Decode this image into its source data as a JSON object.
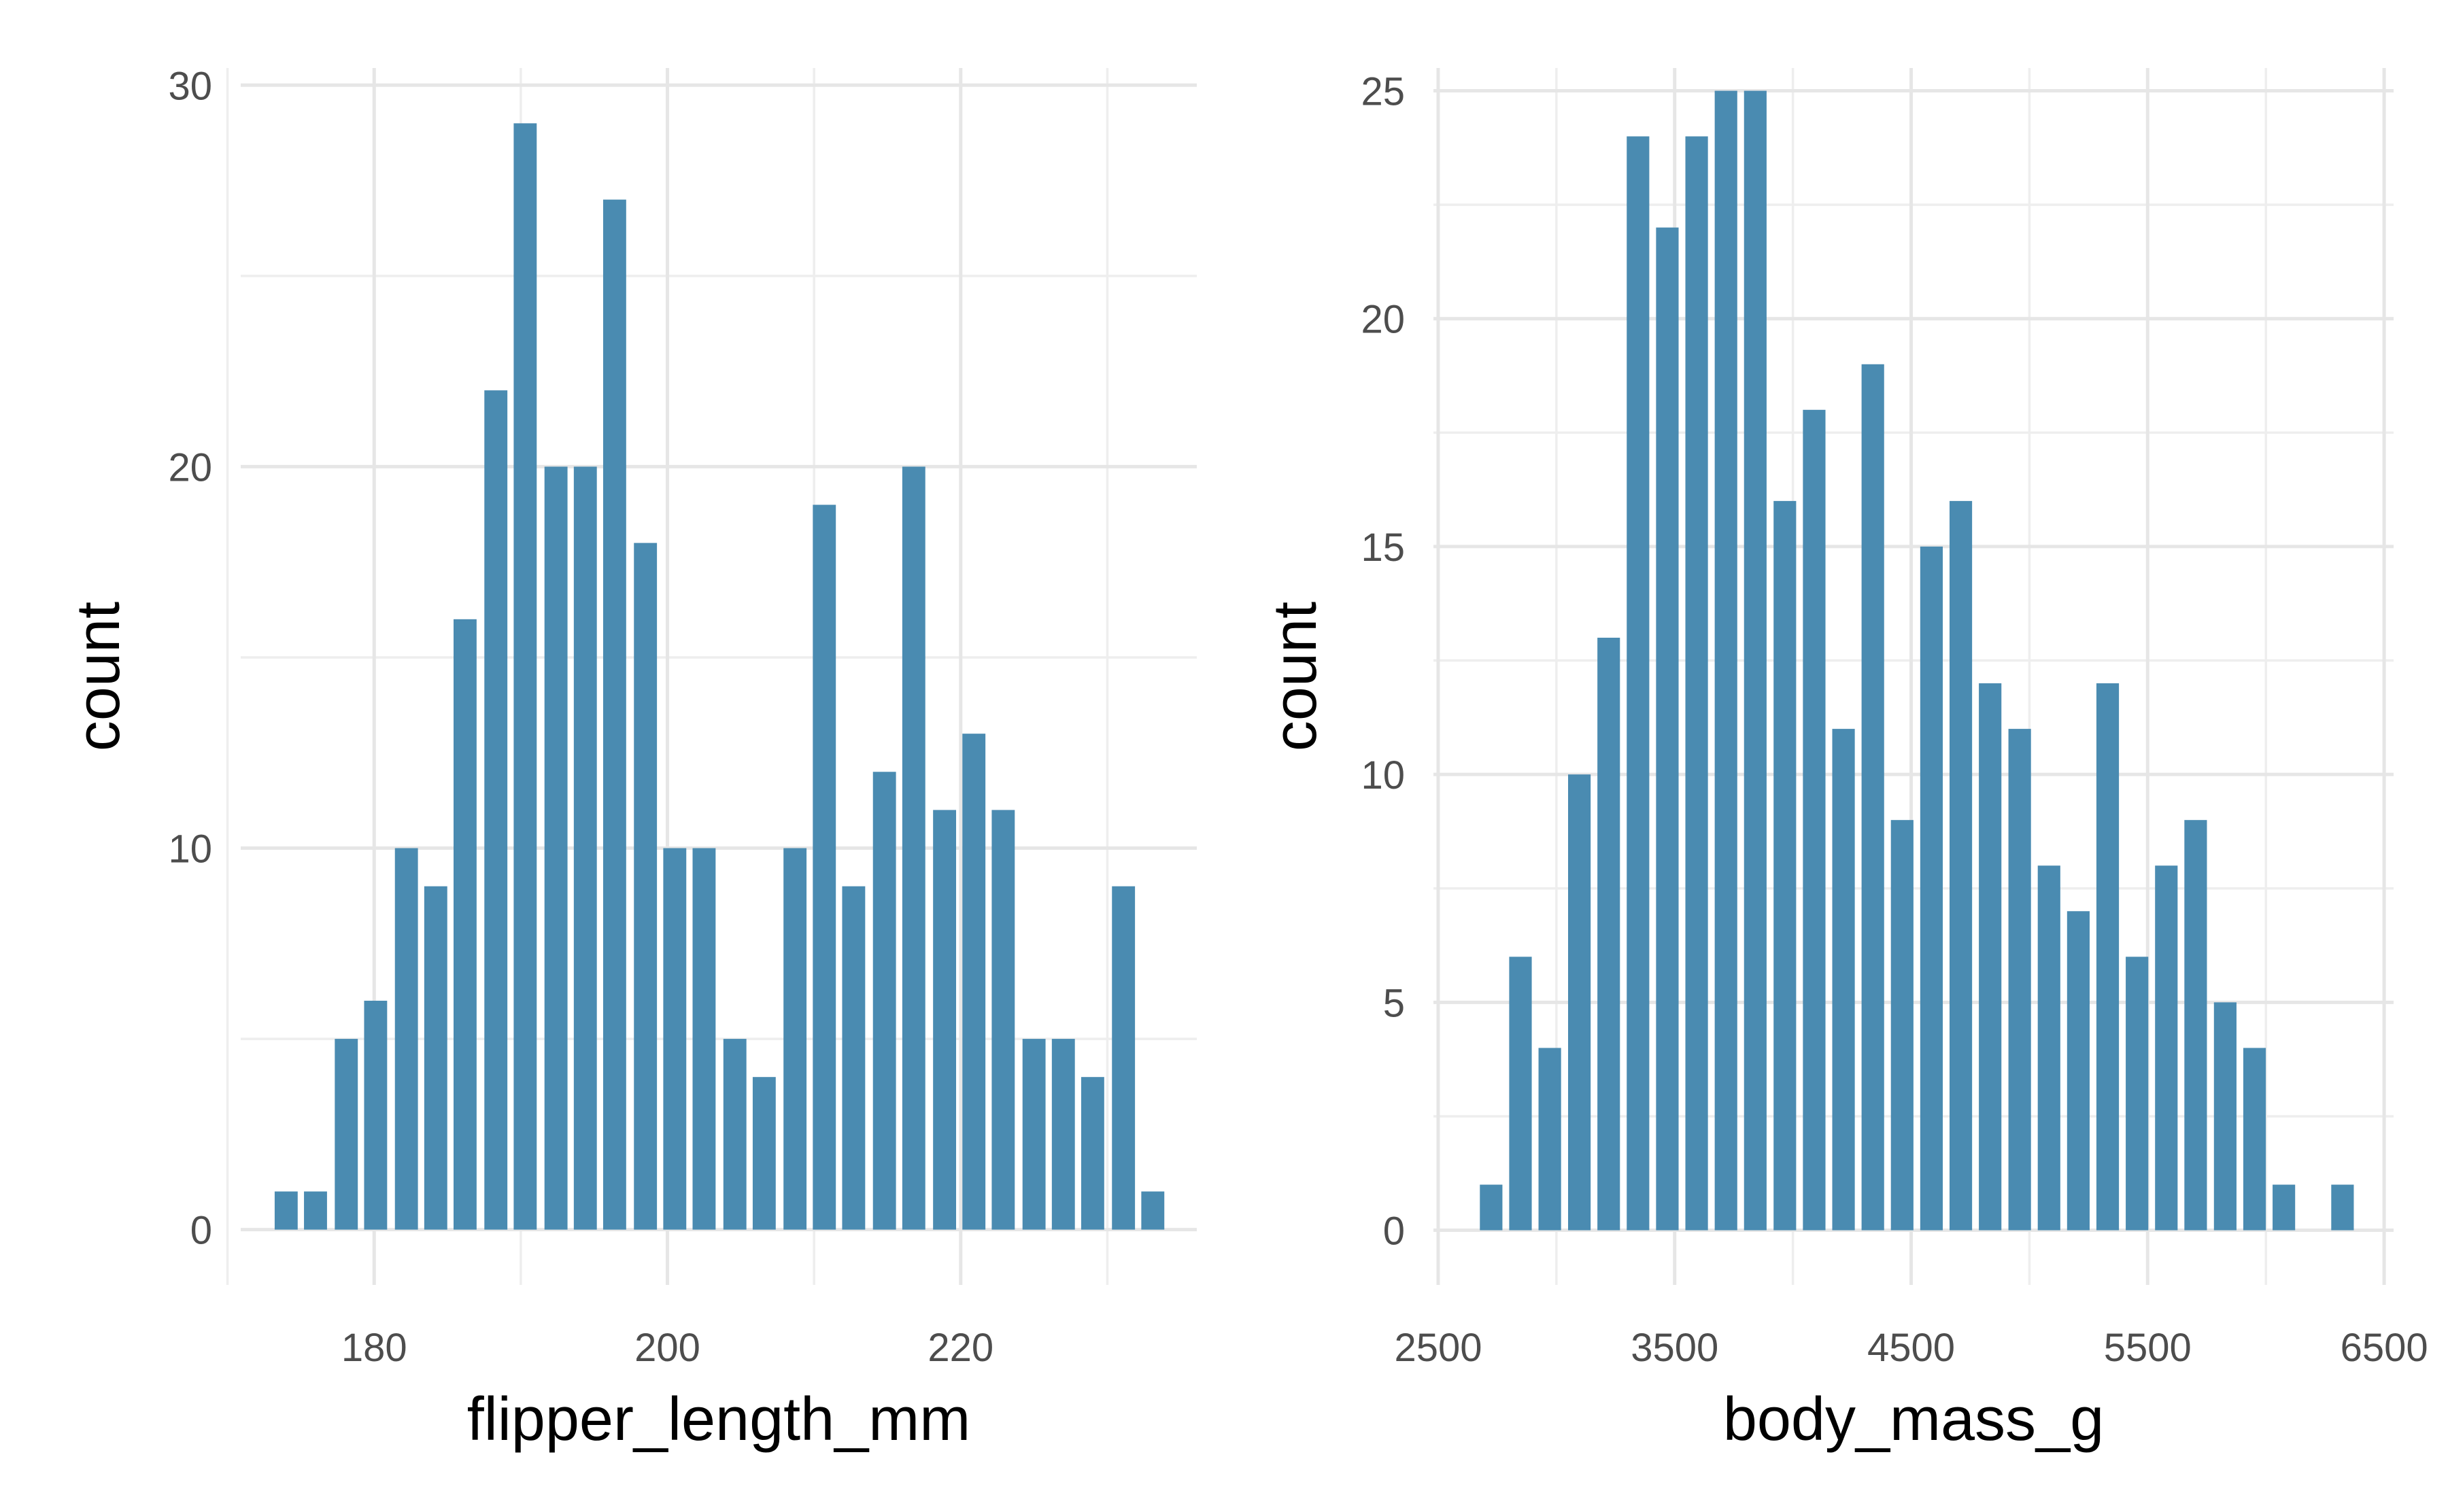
{
  "colors": {
    "bar": "#4A8BB1"
  },
  "chart_data": [
    {
      "type": "bar",
      "title": "",
      "xlabel": "flipper_length_mm",
      "ylabel": "count",
      "xlim": [
        170.9,
        236.1
      ],
      "ylim": [
        -1.45,
        30.45
      ],
      "x_ticks": [
        180,
        200,
        220
      ],
      "x_ticks_minor": [
        170,
        190,
        210,
        230
      ],
      "y_ticks": [
        0,
        10,
        20,
        30
      ],
      "y_ticks_minor": [
        5,
        15,
        25
      ],
      "grid": true,
      "bin_width": 2.034,
      "bins": [
        {
          "x": 174.0,
          "count": 1
        },
        {
          "x": 176.0,
          "count": 1
        },
        {
          "x": 178.1,
          "count": 5
        },
        {
          "x": 180.1,
          "count": 6
        },
        {
          "x": 182.2,
          "count": 10
        },
        {
          "x": 184.2,
          "count": 9
        },
        {
          "x": 186.2,
          "count": 16
        },
        {
          "x": 188.3,
          "count": 22
        },
        {
          "x": 190.3,
          "count": 29
        },
        {
          "x": 192.4,
          "count": 20
        },
        {
          "x": 194.4,
          "count": 20
        },
        {
          "x": 196.4,
          "count": 27
        },
        {
          "x": 198.5,
          "count": 18
        },
        {
          "x": 200.5,
          "count": 10
        },
        {
          "x": 202.5,
          "count": 10
        },
        {
          "x": 204.6,
          "count": 5
        },
        {
          "x": 206.6,
          "count": 4
        },
        {
          "x": 208.7,
          "count": 10
        },
        {
          "x": 210.7,
          "count": 19
        },
        {
          "x": 212.7,
          "count": 9
        },
        {
          "x": 214.8,
          "count": 12
        },
        {
          "x": 216.8,
          "count": 20
        },
        {
          "x": 218.9,
          "count": 11
        },
        {
          "x": 220.9,
          "count": 13
        },
        {
          "x": 222.9,
          "count": 11
        },
        {
          "x": 225.0,
          "count": 5
        },
        {
          "x": 227.0,
          "count": 5
        },
        {
          "x": 229.0,
          "count": 4
        },
        {
          "x": 231.1,
          "count": 9
        },
        {
          "x": 233.1,
          "count": 1
        }
      ]
    },
    {
      "type": "bar",
      "title": "",
      "xlabel": "body_mass_g",
      "ylabel": "count",
      "xlim": [
        2480,
        6540
      ],
      "ylim": [
        -1.2,
        25.5
      ],
      "x_ticks": [
        2500,
        3500,
        4500,
        5500,
        6500
      ],
      "x_ticks_minor": [
        3000,
        4000,
        5000,
        6000
      ],
      "y_ticks": [
        0,
        5,
        10,
        15,
        20,
        25
      ],
      "y_ticks_minor": [
        2.5,
        7.5,
        12.5,
        17.5,
        22.5
      ],
      "grid": true,
      "bin_width": 124.1,
      "bins": [
        {
          "x": 2724,
          "count": 1
        },
        {
          "x": 2848,
          "count": 6
        },
        {
          "x": 2972,
          "count": 4
        },
        {
          "x": 3097,
          "count": 10
        },
        {
          "x": 3221,
          "count": 13
        },
        {
          "x": 3345,
          "count": 24
        },
        {
          "x": 3469,
          "count": 22
        },
        {
          "x": 3593,
          "count": 24
        },
        {
          "x": 3717,
          "count": 25
        },
        {
          "x": 3841,
          "count": 25
        },
        {
          "x": 3966,
          "count": 16
        },
        {
          "x": 4090,
          "count": 18
        },
        {
          "x": 4214,
          "count": 11
        },
        {
          "x": 4338,
          "count": 19
        },
        {
          "x": 4462,
          "count": 9
        },
        {
          "x": 4586,
          "count": 15
        },
        {
          "x": 4710,
          "count": 16
        },
        {
          "x": 4834,
          "count": 12
        },
        {
          "x": 4959,
          "count": 11
        },
        {
          "x": 5083,
          "count": 8
        },
        {
          "x": 5207,
          "count": 7
        },
        {
          "x": 5331,
          "count": 12
        },
        {
          "x": 5455,
          "count": 6
        },
        {
          "x": 5579,
          "count": 8
        },
        {
          "x": 5703,
          "count": 9
        },
        {
          "x": 5828,
          "count": 5
        },
        {
          "x": 5952,
          "count": 4
        },
        {
          "x": 6076,
          "count": 1
        },
        {
          "x": 6200,
          "count": 0
        },
        {
          "x": 6324,
          "count": 1
        }
      ]
    }
  ]
}
